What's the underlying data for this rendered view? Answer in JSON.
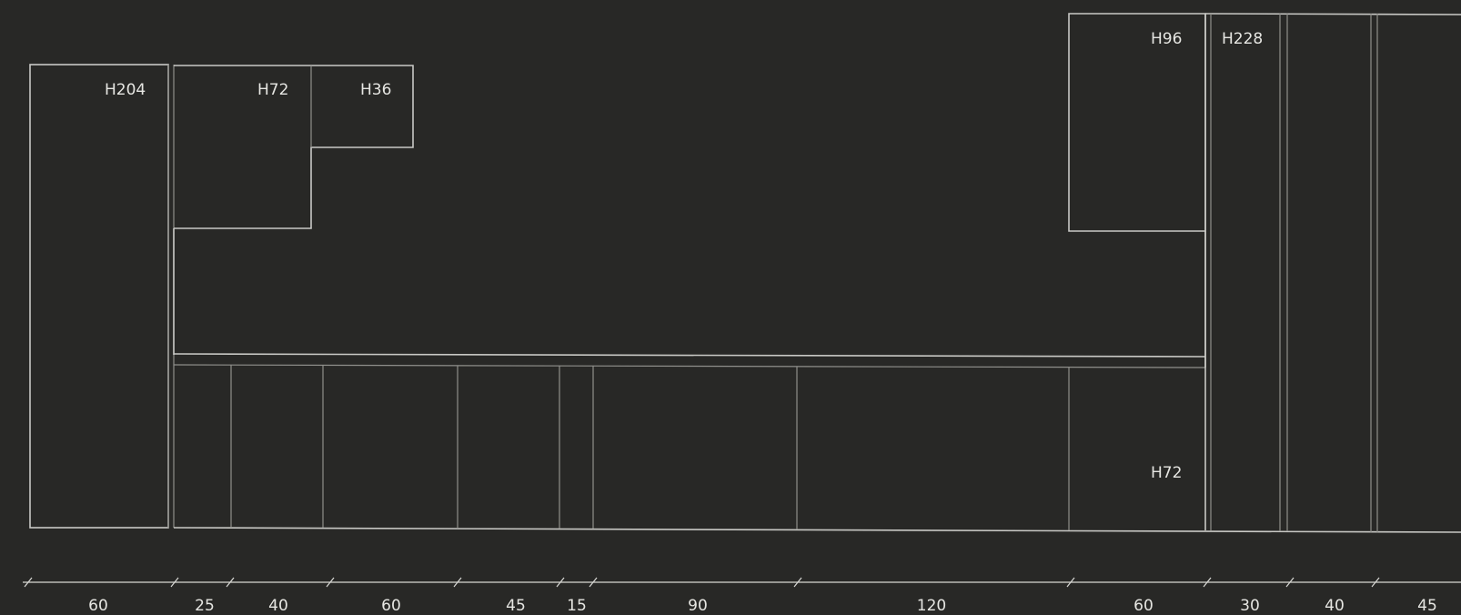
{
  "labels": {
    "tall_left": "H204",
    "upper_left_72": "H72",
    "upper_left_36": "H36",
    "upper_right_96": "H96",
    "tall_right": "H228",
    "base_right_72": "H72"
  },
  "dimensions": [
    "60",
    "25",
    "40",
    "60",
    "45",
    "15",
    "90",
    "120",
    "60",
    "30",
    "40",
    "45"
  ]
}
